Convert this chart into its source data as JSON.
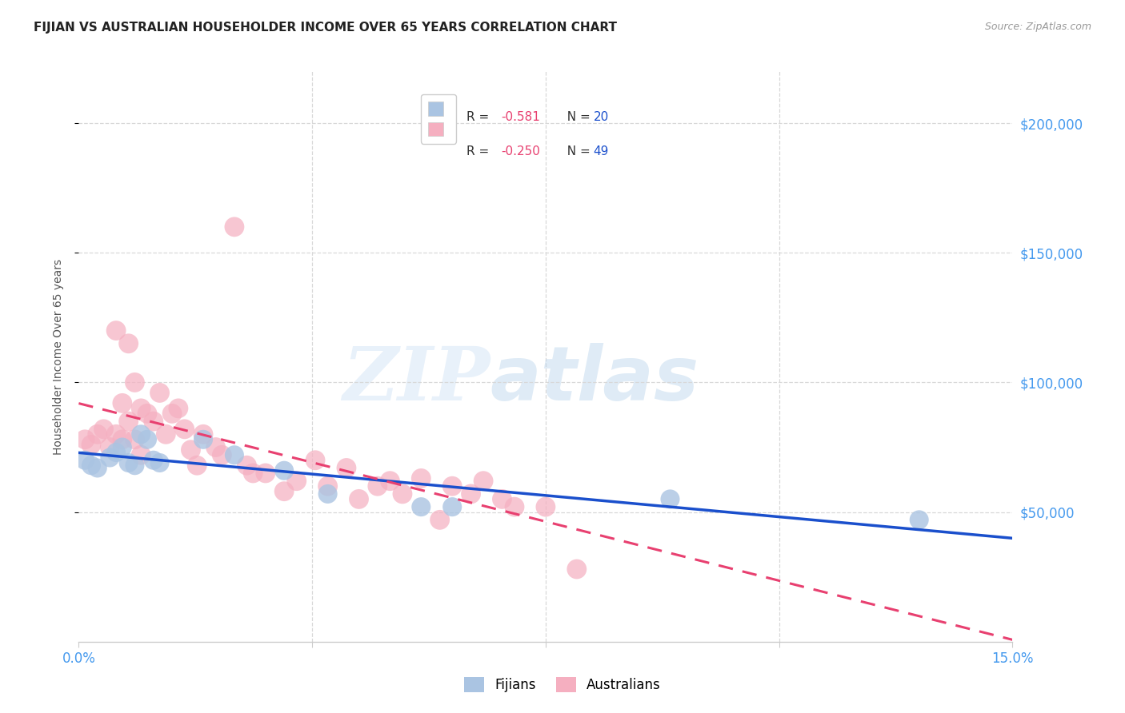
{
  "title": "FIJIAN VS AUSTRALIAN HOUSEHOLDER INCOME OVER 65 YEARS CORRELATION CHART",
  "source": "Source: ZipAtlas.com",
  "ylabel": "Householder Income Over 65 years",
  "xlim": [
    0.0,
    0.15
  ],
  "ylim": [
    0,
    220000
  ],
  "yticks": [
    50000,
    100000,
    150000,
    200000
  ],
  "ytick_labels": [
    "$50,000",
    "$100,000",
    "$150,000",
    "$200,000"
  ],
  "fijian_color": "#aac4e2",
  "australian_color": "#f5afc0",
  "fijian_line_color": "#1a4fcc",
  "australian_line_color": "#e84070",
  "legend_r_fijian": "-0.581",
  "legend_n_fijian": "20",
  "legend_r_australian": "-0.250",
  "legend_n_australian": "49",
  "fijians_x": [
    0.001,
    0.002,
    0.003,
    0.005,
    0.006,
    0.007,
    0.008,
    0.009,
    0.01,
    0.011,
    0.012,
    0.013,
    0.02,
    0.025,
    0.033,
    0.04,
    0.055,
    0.06,
    0.095,
    0.135
  ],
  "fijians_y": [
    70000,
    68000,
    67000,
    71000,
    73000,
    75000,
    69000,
    68000,
    80000,
    78000,
    70000,
    69000,
    78000,
    72000,
    66000,
    57000,
    52000,
    52000,
    55000,
    47000
  ],
  "australians_x": [
    0.001,
    0.002,
    0.003,
    0.004,
    0.005,
    0.006,
    0.006,
    0.007,
    0.007,
    0.008,
    0.008,
    0.009,
    0.009,
    0.01,
    0.01,
    0.011,
    0.012,
    0.013,
    0.014,
    0.015,
    0.016,
    0.017,
    0.018,
    0.019,
    0.02,
    0.022,
    0.023,
    0.025,
    0.027,
    0.028,
    0.03,
    0.033,
    0.035,
    0.038,
    0.04,
    0.043,
    0.045,
    0.048,
    0.05,
    0.052,
    0.055,
    0.058,
    0.06,
    0.063,
    0.065,
    0.068,
    0.07,
    0.075,
    0.08
  ],
  "australians_y": [
    78000,
    76000,
    80000,
    82000,
    75000,
    80000,
    120000,
    78000,
    92000,
    85000,
    115000,
    78000,
    100000,
    72000,
    90000,
    88000,
    85000,
    96000,
    80000,
    88000,
    90000,
    82000,
    74000,
    68000,
    80000,
    75000,
    72000,
    160000,
    68000,
    65000,
    65000,
    58000,
    62000,
    70000,
    60000,
    67000,
    55000,
    60000,
    62000,
    57000,
    63000,
    47000,
    60000,
    57000,
    62000,
    55000,
    52000,
    52000,
    28000
  ],
  "watermark_zip": "ZIP",
  "watermark_atlas": "atlas",
  "background_color": "#ffffff",
  "grid_color": "#d8d8d8",
  "tick_color": "#4499ee",
  "title_color": "#222222",
  "source_color": "#999999",
  "ylabel_color": "#555555"
}
